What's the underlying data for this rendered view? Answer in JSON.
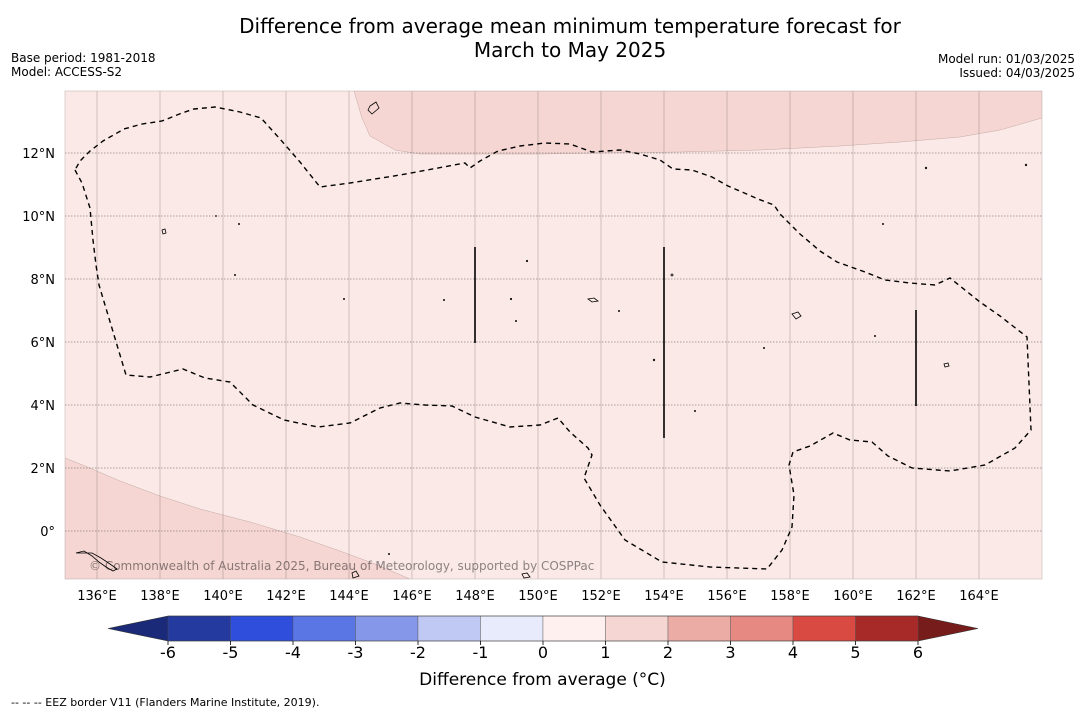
{
  "title": {
    "line1": "Difference from average mean minimum temperature forecast for",
    "line2": "March to May 2025"
  },
  "meta_left": {
    "base_period": "Base period: 1981-2018",
    "model": "Model: ACCESS-S2"
  },
  "meta_right": {
    "model_run": "Model run: 01/03/2025",
    "issued": "Issued: 04/03/2025"
  },
  "map": {
    "lon_range": [
      135,
      166
    ],
    "lat_range": [
      -1.5,
      14
    ],
    "lon_ticks": [
      "136°E",
      "138°E",
      "140°E",
      "142°E",
      "144°E",
      "146°E",
      "148°E",
      "150°E",
      "152°E",
      "154°E",
      "156°E",
      "158°E",
      "160°E",
      "162°E",
      "164°E"
    ],
    "lat_ticks": [
      "12°N",
      "10°N",
      "8°N",
      "6°N",
      "4°N",
      "2°N",
      "0°"
    ],
    "background_class": "0 to 1",
    "background_color": "#fbe9e7",
    "highlight_class": "1 to 2",
    "highlight_color": "#f5d6d2",
    "eez_border_style": "dashed",
    "credit": "© Commonwealth of Australia 2025, Bureau of Meteorology, supported by COSPPac"
  },
  "colorbar": {
    "ticks": [
      "-6",
      "-5",
      "-4",
      "-3",
      "-2",
      "-1",
      "0",
      "1",
      "2",
      "3",
      "4",
      "5",
      "6"
    ],
    "colors": [
      "#243a9f",
      "#2e4edb",
      "#5a75e4",
      "#8597e8",
      "#c0c8f4",
      "#e8ebfb",
      "#fdf0ef",
      "#f5d6d2",
      "#ecaca6",
      "#e58982",
      "#d94a43",
      "#a82a28"
    ],
    "under_color": "#1a2a78",
    "over_color": "#761d1b",
    "label": "Difference from average (°C)"
  },
  "footnote": "-- -- -- EEZ border V11 (Flanders Marine Institute, 2019)."
}
